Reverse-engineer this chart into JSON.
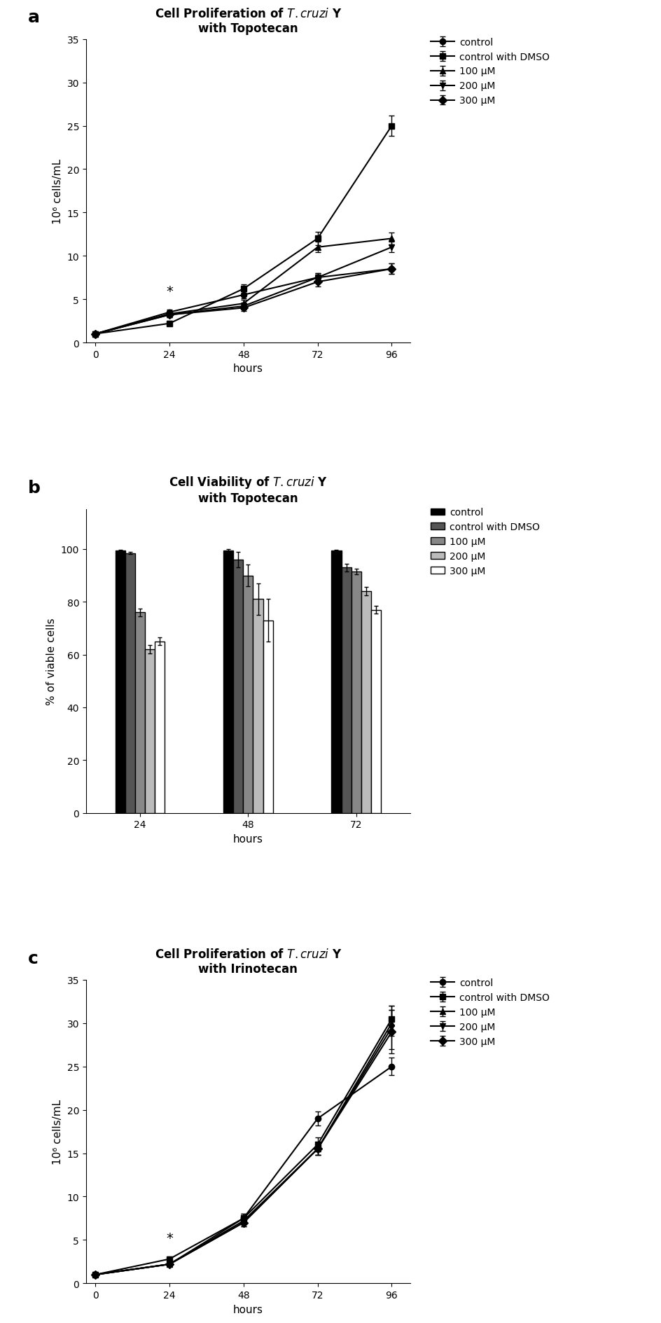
{
  "panel_a": {
    "title": "Cell Proliferation of $\\it{T. cruzi}$ Y\nwith Topotecan",
    "xlabel": "hours",
    "ylabel": "10⁶ cells/mL",
    "xlim": [
      -3,
      102
    ],
    "ylim": [
      0,
      35
    ],
    "yticks": [
      0,
      5,
      10,
      15,
      20,
      25,
      30,
      35
    ],
    "xticks": [
      0,
      24,
      48,
      72,
      96
    ],
    "x": [
      0,
      24,
      48,
      72,
      96
    ],
    "series": {
      "control": [
        1.0,
        3.5,
        5.5,
        7.5,
        8.5
      ],
      "control_dmso": [
        1.0,
        2.2,
        6.2,
        12.0,
        25.0
      ],
      "100uM": [
        1.0,
        3.3,
        4.5,
        11.0,
        12.0
      ],
      "200uM": [
        1.0,
        3.2,
        4.2,
        7.5,
        11.0
      ],
      "300uM": [
        1.0,
        3.2,
        4.0,
        7.0,
        8.5
      ]
    },
    "errors": {
      "control": [
        0,
        0.3,
        0.4,
        0.5,
        0.6
      ],
      "control_dmso": [
        0,
        0.3,
        0.5,
        0.8,
        1.2
      ],
      "100uM": [
        0,
        0.3,
        0.4,
        0.6,
        0.7
      ],
      "200uM": [
        0,
        0.3,
        0.4,
        0.5,
        0.6
      ],
      "300uM": [
        0,
        0.3,
        0.4,
        0.5,
        0.6
      ]
    },
    "star_x": 24,
    "star_y": 5.2,
    "legend_labels": [
      "control",
      "control with DMSO",
      "100 μM",
      "200 μM",
      "300 μM"
    ],
    "markers": [
      "o",
      "s",
      "^",
      "v",
      "D"
    ],
    "label_letter": "a"
  },
  "panel_b": {
    "title": "Cell Viability of $\\it{T. cruzi}$ Y\nwith Topotecan",
    "xlabel": "hours",
    "ylabel": "% of viable cells",
    "ylim": [
      0,
      115
    ],
    "yticks": [
      0,
      20,
      40,
      60,
      80,
      100
    ],
    "group_labels": [
      "24",
      "48",
      "72"
    ],
    "values": {
      "24h": [
        99.5,
        98.5,
        76.0,
        62.0,
        65.0
      ],
      "48h": [
        99.5,
        96.0,
        90.0,
        81.0,
        73.0
      ],
      "72h": [
        99.5,
        93.0,
        91.5,
        84.0,
        77.0
      ]
    },
    "errors": {
      "24h": [
        0.3,
        0.5,
        1.5,
        1.5,
        1.5
      ],
      "48h": [
        0.5,
        3.0,
        4.0,
        6.0,
        8.0
      ],
      "72h": [
        0.3,
        1.5,
        1.0,
        1.5,
        1.5
      ]
    },
    "bar_colors": [
      "#000000",
      "#555555",
      "#888888",
      "#bbbbbb",
      "#ffffff"
    ],
    "bar_edge": "#000000",
    "legend_labels": [
      "control",
      "control with DMSO",
      "100 μM",
      "200 μM",
      "300 μM"
    ],
    "label_letter": "b"
  },
  "panel_c": {
    "title": "Cell Proliferation of $\\it{T. cruzi}$ Y\nwith Irinotecan",
    "xlabel": "hours",
    "ylabel": "10⁶ cells/mL",
    "xlim": [
      -3,
      102
    ],
    "ylim": [
      0,
      35
    ],
    "yticks": [
      0,
      5,
      10,
      15,
      20,
      25,
      30,
      35
    ],
    "xticks": [
      0,
      24,
      48,
      72,
      96
    ],
    "x": [
      0,
      24,
      48,
      72,
      96
    ],
    "series": {
      "control": [
        1.0,
        2.2,
        7.5,
        19.0,
        25.0
      ],
      "control_dmso": [
        1.0,
        2.8,
        7.5,
        16.0,
        30.5
      ],
      "100uM": [
        1.0,
        2.2,
        7.2,
        15.5,
        30.0
      ],
      "200uM": [
        1.0,
        2.2,
        7.0,
        15.5,
        29.5
      ],
      "300uM": [
        1.0,
        2.2,
        7.0,
        15.5,
        29.0
      ]
    },
    "errors": {
      "control": [
        0,
        0.2,
        0.5,
        0.8,
        1.0
      ],
      "control_dmso": [
        0,
        0.3,
        0.5,
        0.8,
        1.5
      ],
      "100uM": [
        0,
        0.2,
        0.4,
        0.7,
        1.5
      ],
      "200uM": [
        0,
        0.2,
        0.4,
        0.7,
        2.5
      ],
      "300uM": [
        0,
        0.2,
        0.4,
        0.7,
        2.5
      ]
    },
    "star_x": 24,
    "star_y": 4.5,
    "legend_labels": [
      "control",
      "control with DMSO",
      "100 μM",
      "200 μM",
      "300 μM"
    ],
    "markers": [
      "o",
      "s",
      "^",
      "v",
      "D"
    ],
    "label_letter": "c"
  },
  "line_color": "#000000",
  "marker_size": 6,
  "linewidth": 1.5,
  "font_size_title": 12,
  "font_size_label": 11,
  "font_size_tick": 10,
  "font_size_legend": 10,
  "font_size_letter": 18
}
